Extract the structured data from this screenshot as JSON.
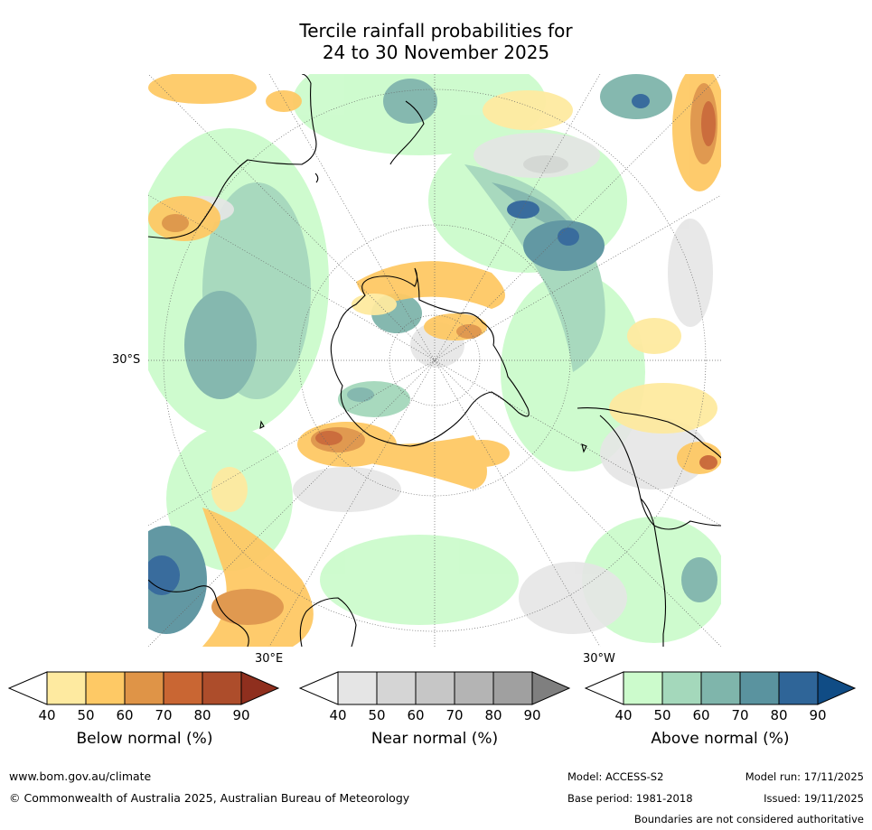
{
  "title_line1": "Tercile rainfall probabilities for",
  "title_line2": "24 to 30 November 2025",
  "map": {
    "lat_label": "30°S",
    "lon_labels": [
      "30°E",
      "30°W"
    ],
    "colors": {
      "coast": "#000000",
      "grid": "#666666"
    }
  },
  "colorbars": [
    {
      "label": "Below normal (%)",
      "ticks": [
        "40",
        "50",
        "60",
        "70",
        "80",
        "90"
      ],
      "colors": [
        "#ffffff",
        "#feeaa0",
        "#fec965",
        "#df9447",
        "#c96633",
        "#ad4d2b",
        "#8f2f1e"
      ]
    },
    {
      "label": "Near normal (%)",
      "ticks": [
        "40",
        "50",
        "60",
        "70",
        "80",
        "90"
      ],
      "colors": [
        "#ffffff",
        "#e5e5e5",
        "#d5d5d5",
        "#c6c6c6",
        "#b4b4b4",
        "#a0a0a0",
        "#7f7f7f"
      ]
    },
    {
      "label": "Above normal (%)",
      "ticks": [
        "40",
        "50",
        "60",
        "70",
        "80",
        "90"
      ],
      "colors": [
        "#ffffff",
        "#ccfbcc",
        "#a4d8bb",
        "#7fb5ab",
        "#5a939f",
        "#2f6598",
        "#104c85"
      ]
    }
  ],
  "footer": {
    "website": "www.bom.gov.au/climate",
    "copyright": "© Commonwealth of Australia 2025, Australian Bureau of Meteorology",
    "model": "Model: ACCESS-S2",
    "model_run": "Model run: 17/11/2025",
    "base_period": "Base period: 1981-2018",
    "issued": "Issued: 19/11/2025",
    "disclaimer": "Boundaries are not considered authoritative"
  }
}
